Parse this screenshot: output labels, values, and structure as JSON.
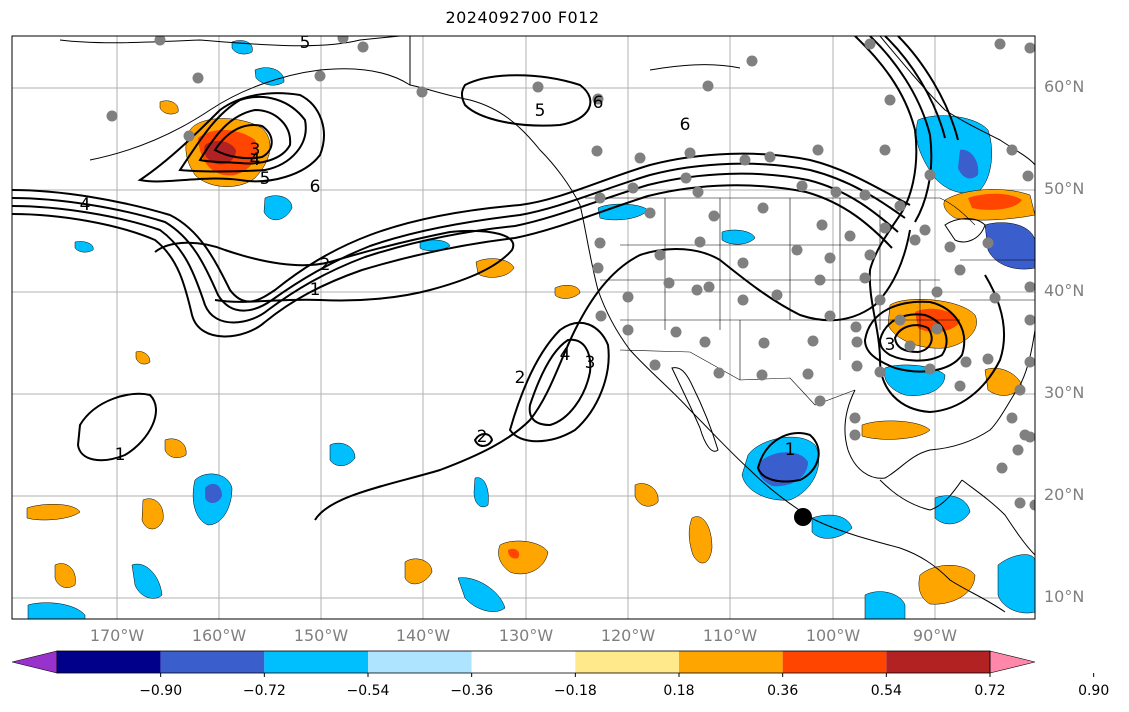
{
  "title": "2024092700 F012",
  "lat_labels": [
    "60°N",
    "50°N",
    "40°N",
    "30°N",
    "20°N",
    "10°N"
  ],
  "lon_labels": [
    "170°W",
    "160°W",
    "150°W",
    "140°W",
    "130°W",
    "120°W",
    "110°W",
    "100°W",
    "90°W"
  ],
  "contour_labels": [
    "1",
    "1",
    "1",
    "2",
    "2",
    "2",
    "3",
    "3",
    "3",
    "4",
    "4",
    "4",
    "5",
    "5",
    "5",
    "6",
    "6",
    "6"
  ],
  "colorbar": {
    "labels": [
      "−0.90",
      "−0.72",
      "−0.54",
      "−0.36",
      "−0.18",
      "0.18",
      "0.36",
      "0.54",
      "0.72",
      "0.90"
    ],
    "colors": [
      "#9932cc",
      "#00008b",
      "#3a5fcd",
      "#00bfff",
      "#aee4ff",
      "#ffffff",
      "#ffe98a",
      "#ffa500",
      "#ff4500",
      "#b22222",
      "#ff88aa"
    ]
  },
  "colors": {
    "contour": "#000000",
    "station": "#808080",
    "grid": "#b0b0b0",
    "coast": "#000000",
    "marker": "#000000"
  }
}
